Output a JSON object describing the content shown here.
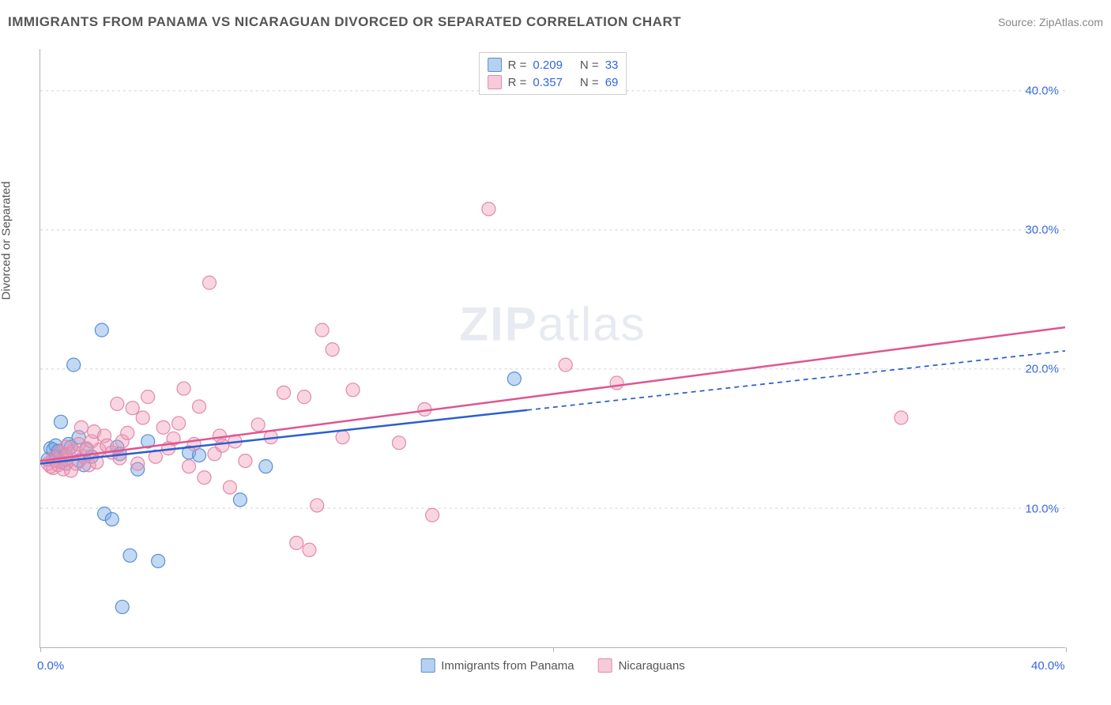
{
  "header": {
    "title": "IMMIGRANTS FROM PANAMA VS NICARAGUAN DIVORCED OR SEPARATED CORRELATION CHART",
    "source_label": "Source:",
    "source_name": "ZipAtlas.com"
  },
  "ylabel": "Divorced or Separated",
  "watermark": {
    "bold": "ZIP",
    "thin": "atlas"
  },
  "chart": {
    "type": "scatter",
    "background_color": "#ffffff",
    "grid_color": "#d0d0d0",
    "axis_color": "#b0b0b0",
    "xlim": [
      0,
      40
    ],
    "ylim": [
      0,
      43
    ],
    "xticks": [
      0,
      20,
      40
    ],
    "xtick_labels": [
      "0.0%",
      "",
      "40.0%"
    ],
    "yticks": [
      10,
      20,
      30,
      40
    ],
    "ytick_labels": [
      "10.0%",
      "20.0%",
      "30.0%",
      "40.0%"
    ],
    "tick_label_color": "#3366dd",
    "tick_label_fontsize": 15,
    "series": [
      {
        "name": "Immigrants from Panama",
        "short_name": "panama",
        "marker_fill": "rgba(120,170,230,0.45)",
        "marker_stroke": "#5a8fd0",
        "marker_radius": 8.5,
        "line_color": "#2a5fd0",
        "line_width": 2.5,
        "R": "0.209",
        "N": "33",
        "trend": {
          "x1": 0,
          "y1": 13.2,
          "x2": 40,
          "y2": 21.3,
          "solid_until_x": 19
        },
        "points": [
          [
            0.3,
            13.5
          ],
          [
            0.4,
            14.3
          ],
          [
            0.5,
            14.2
          ],
          [
            0.6,
            14.5
          ],
          [
            0.6,
            13.7
          ],
          [
            0.7,
            14.1
          ],
          [
            0.8,
            16.2
          ],
          [
            0.8,
            13.3
          ],
          [
            1.0,
            13.8
          ],
          [
            1.0,
            13.2
          ],
          [
            1.1,
            14.6
          ],
          [
            1.2,
            14.4
          ],
          [
            1.3,
            20.3
          ],
          [
            1.5,
            15.1
          ],
          [
            1.5,
            13.4
          ],
          [
            1.7,
            13.1
          ],
          [
            1.8,
            14.2
          ],
          [
            2.0,
            13.7
          ],
          [
            2.4,
            22.8
          ],
          [
            2.5,
            9.6
          ],
          [
            2.8,
            9.2
          ],
          [
            3.0,
            14.4
          ],
          [
            3.1,
            13.9
          ],
          [
            3.2,
            2.9
          ],
          [
            3.5,
            6.6
          ],
          [
            3.8,
            12.8
          ],
          [
            4.2,
            14.8
          ],
          [
            4.6,
            6.2
          ],
          [
            5.8,
            14.0
          ],
          [
            6.2,
            13.8
          ],
          [
            7.8,
            10.6
          ],
          [
            8.8,
            13.0
          ],
          [
            18.5,
            19.3
          ]
        ]
      },
      {
        "name": "Nicaraguans",
        "short_name": "nicaragua",
        "marker_fill": "rgba(240,150,180,0.40)",
        "marker_stroke": "#e08aac",
        "marker_radius": 8.5,
        "line_color": "#e05590",
        "line_width": 2.5,
        "R": "0.357",
        "N": "69",
        "trend": {
          "x1": 0,
          "y1": 13.4,
          "x2": 40,
          "y2": 23.0,
          "solid_until_x": 40
        },
        "points": [
          [
            0.3,
            13.2
          ],
          [
            0.4,
            13.0
          ],
          [
            0.5,
            12.9
          ],
          [
            0.5,
            13.6
          ],
          [
            0.6,
            13.4
          ],
          [
            0.7,
            13.1
          ],
          [
            0.8,
            14.0
          ],
          [
            0.9,
            12.8
          ],
          [
            1.0,
            13.5
          ],
          [
            1.0,
            14.4
          ],
          [
            1.1,
            13.9
          ],
          [
            1.2,
            12.7
          ],
          [
            1.3,
            14.1
          ],
          [
            1.4,
            13.2
          ],
          [
            1.5,
            14.6
          ],
          [
            1.6,
            15.8
          ],
          [
            1.7,
            13.7
          ],
          [
            1.8,
            14.3
          ],
          [
            1.9,
            13.1
          ],
          [
            2.0,
            14.8
          ],
          [
            2.1,
            15.5
          ],
          [
            2.2,
            13.3
          ],
          [
            2.3,
            14.2
          ],
          [
            2.5,
            15.2
          ],
          [
            2.6,
            14.5
          ],
          [
            2.8,
            14.0
          ],
          [
            3.0,
            17.5
          ],
          [
            3.1,
            13.6
          ],
          [
            3.2,
            14.8
          ],
          [
            3.4,
            15.4
          ],
          [
            3.6,
            17.2
          ],
          [
            3.8,
            13.2
          ],
          [
            4.0,
            16.5
          ],
          [
            4.2,
            18.0
          ],
          [
            4.5,
            13.7
          ],
          [
            4.8,
            15.8
          ],
          [
            5.0,
            14.3
          ],
          [
            5.2,
            15.0
          ],
          [
            5.4,
            16.1
          ],
          [
            5.6,
            18.6
          ],
          [
            5.8,
            13.0
          ],
          [
            6.0,
            14.6
          ],
          [
            6.2,
            17.3
          ],
          [
            6.4,
            12.2
          ],
          [
            6.6,
            26.2
          ],
          [
            6.8,
            13.9
          ],
          [
            7.0,
            15.2
          ],
          [
            7.1,
            14.5
          ],
          [
            7.4,
            11.5
          ],
          [
            7.6,
            14.8
          ],
          [
            8.0,
            13.4
          ],
          [
            8.5,
            16.0
          ],
          [
            9.0,
            15.1
          ],
          [
            9.5,
            18.3
          ],
          [
            10.0,
            7.5
          ],
          [
            10.3,
            18.0
          ],
          [
            10.5,
            7.0
          ],
          [
            10.8,
            10.2
          ],
          [
            11.0,
            22.8
          ],
          [
            11.4,
            21.4
          ],
          [
            11.8,
            15.1
          ],
          [
            12.2,
            18.5
          ],
          [
            15.0,
            17.1
          ],
          [
            15.3,
            9.5
          ],
          [
            17.5,
            31.5
          ],
          [
            20.5,
            20.3
          ],
          [
            22.5,
            19.0
          ],
          [
            33.6,
            16.5
          ],
          [
            14.0,
            14.7
          ]
        ]
      }
    ],
    "legend_top": {
      "rows": [
        {
          "swatch_fill": "rgba(120,170,230,0.55)",
          "swatch_stroke": "#5a8fd0",
          "R_label": "R =",
          "R_value": "0.209",
          "N_label": "N =",
          "N_value": "33"
        },
        {
          "swatch_fill": "rgba(240,150,180,0.50)",
          "swatch_stroke": "#e08aac",
          "R_label": "R =",
          "R_value": "0.357",
          "N_label": "N =",
          "N_value": "69"
        }
      ]
    },
    "legend_bottom": [
      {
        "swatch_fill": "rgba(120,170,230,0.55)",
        "swatch_stroke": "#5a8fd0",
        "label": "Immigrants from Panama"
      },
      {
        "swatch_fill": "rgba(240,150,180,0.50)",
        "swatch_stroke": "#e08aac",
        "label": "Nicaraguans"
      }
    ]
  }
}
